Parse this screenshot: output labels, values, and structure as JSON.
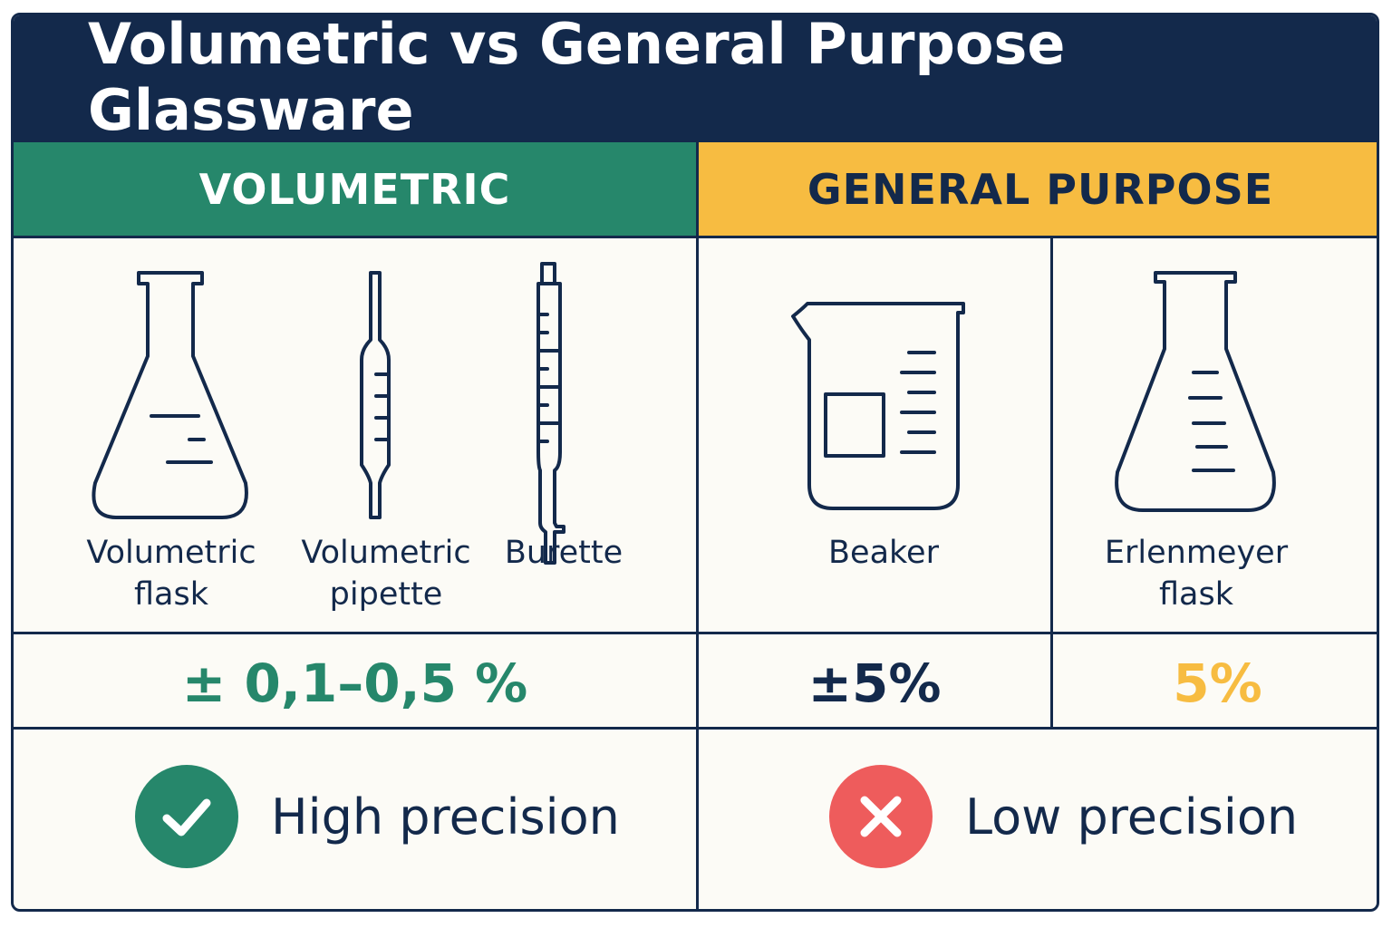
{
  "title": "Volumetric vs General Purpose Glassware",
  "colors": {
    "navy": "#13294b",
    "green": "#26876b",
    "yellow": "#f7bc41",
    "red": "#ee5c5c",
    "background": "#fcfbf6"
  },
  "volumetric": {
    "header": "VOLUMETRIC",
    "items": [
      {
        "icon": "volumetric-flask-icon",
        "label_line1": "Volumetric",
        "label_line2": "flask"
      },
      {
        "icon": "volumetric-pipette-icon",
        "label_line1": "Volumetric",
        "label_line2": "pipette"
      },
      {
        "icon": "burette-icon",
        "label_line1": "",
        "label_line2": "Burette"
      }
    ],
    "accuracy": "± 0,1–0,5 %",
    "verdict_icon": "checkmark-icon",
    "verdict": "High precision"
  },
  "general": {
    "header": "GENERAL PURPOSE",
    "items": [
      {
        "icon": "beaker-icon",
        "label_line1": "Beaker",
        "label_line2": ""
      },
      {
        "icon": "erlenmeyer-flask-icon",
        "label_line1": "Erlenmeyer",
        "label_line2": "flask"
      }
    ],
    "accuracy_beaker": "±5%",
    "accuracy_erlenmeyer": "5%",
    "verdict_icon": "x-icon",
    "verdict": "Low precision"
  }
}
